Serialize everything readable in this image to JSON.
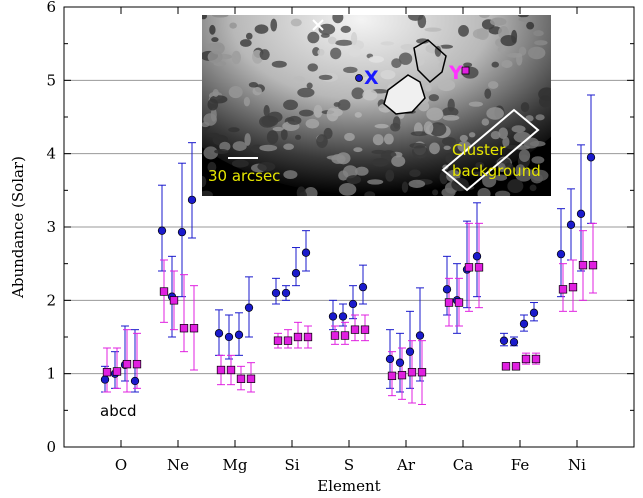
{
  "chart_data": {
    "type": "scatter",
    "xlabel": "Element",
    "ylabel": "Abundance (Solar)",
    "ylim": [
      0,
      6
    ],
    "yticks": [
      0,
      1,
      2,
      3,
      4,
      5,
      6
    ],
    "grid_y": true,
    "categories": [
      "O",
      "Ne",
      "Mg",
      "Si",
      "S",
      "Ar",
      "Ca",
      "Fe",
      "Ni"
    ],
    "subpoints": [
      "a",
      "b",
      "c",
      "d"
    ],
    "annotation": "abcd",
    "series": [
      {
        "marker": "circle",
        "color": "#1a1acc",
        "points": [
          {
            "category": "O",
            "sub": "a",
            "y": 0.92,
            "err": [
              0.75,
              1.1
            ]
          },
          {
            "category": "O",
            "sub": "b",
            "y": 1.0,
            "err": [
              0.8,
              1.3
            ]
          },
          {
            "category": "O",
            "sub": "c",
            "y": 1.12,
            "err": [
              0.9,
              1.65
            ]
          },
          {
            "category": "O",
            "sub": "d",
            "y": 0.9,
            "err": [
              0.75,
              1.6
            ]
          },
          {
            "category": "Ne",
            "sub": "a",
            "y": 2.95,
            "err": [
              2.4,
              3.57
            ]
          },
          {
            "category": "Ne",
            "sub": "b",
            "y": 2.05,
            "err": [
              1.5,
              2.6
            ]
          },
          {
            "category": "Ne",
            "sub": "c",
            "y": 2.93,
            "err": [
              2.05,
              3.87
            ]
          },
          {
            "category": "Ne",
            "sub": "d",
            "y": 3.37,
            "err": [
              2.85,
              4.15
            ]
          },
          {
            "category": "Mg",
            "sub": "a",
            "y": 1.55,
            "err": [
              1.25,
              1.87
            ]
          },
          {
            "category": "Mg",
            "sub": "b",
            "y": 1.5,
            "err": [
              1.2,
              1.8
            ]
          },
          {
            "category": "Mg",
            "sub": "c",
            "y": 1.53,
            "err": [
              1.25,
              1.83
            ]
          },
          {
            "category": "Mg",
            "sub": "d",
            "y": 1.9,
            "err": [
              1.5,
              2.32
            ]
          },
          {
            "category": "Si",
            "sub": "a",
            "y": 2.1,
            "err": [
              1.95,
              2.3
            ]
          },
          {
            "category": "Si",
            "sub": "b",
            "y": 2.1,
            "err": [
              2.0,
              2.2
            ]
          },
          {
            "category": "Si",
            "sub": "c",
            "y": 2.37,
            "err": [
              2.2,
              2.72
            ]
          },
          {
            "category": "Si",
            "sub": "d",
            "y": 2.65,
            "err": [
              2.4,
              2.95
            ]
          },
          {
            "category": "S",
            "sub": "a",
            "y": 1.78,
            "err": [
              1.6,
              2.0
            ]
          },
          {
            "category": "S",
            "sub": "b",
            "y": 1.78,
            "err": [
              1.65,
              1.95
            ]
          },
          {
            "category": "S",
            "sub": "c",
            "y": 1.95,
            "err": [
              1.75,
              2.2
            ]
          },
          {
            "category": "S",
            "sub": "d",
            "y": 2.18,
            "err": [
              1.95,
              2.48
            ]
          },
          {
            "category": "Ar",
            "sub": "a",
            "y": 1.2,
            "err": [
              0.8,
              1.6
            ]
          },
          {
            "category": "Ar",
            "sub": "b",
            "y": 1.15,
            "err": [
              0.75,
              1.55
            ]
          },
          {
            "category": "Ar",
            "sub": "c",
            "y": 1.3,
            "err": [
              0.8,
              1.85
            ]
          },
          {
            "category": "Ar",
            "sub": "d",
            "y": 1.52,
            "err": [
              0.9,
              2.17
            ]
          },
          {
            "category": "Ca",
            "sub": "a",
            "y": 2.15,
            "err": [
              1.8,
              2.6
            ]
          },
          {
            "category": "Ca",
            "sub": "b",
            "y": 2.0,
            "err": [
              1.55,
              2.5
            ]
          },
          {
            "category": "Ca",
            "sub": "c",
            "y": 2.42,
            "err": [
              1.9,
              3.08
            ]
          },
          {
            "category": "Ca",
            "sub": "d",
            "y": 2.6,
            "err": [
              2.05,
              3.33
            ]
          },
          {
            "category": "Fe",
            "sub": "a",
            "y": 1.45,
            "err": [
              1.38,
              1.55
            ]
          },
          {
            "category": "Fe",
            "sub": "b",
            "y": 1.43,
            "err": [
              1.38,
              1.5
            ]
          },
          {
            "category": "Fe",
            "sub": "c",
            "y": 1.68,
            "err": [
              1.58,
              1.8
            ]
          },
          {
            "category": "Fe",
            "sub": "d",
            "y": 1.83,
            "err": [
              1.72,
              1.97
            ]
          },
          {
            "category": "Ni",
            "sub": "a",
            "y": 2.63,
            "err": [
              2.05,
              3.25
            ]
          },
          {
            "category": "Ni",
            "sub": "b",
            "y": 3.03,
            "err": [
              2.55,
              3.52
            ]
          },
          {
            "category": "Ni",
            "sub": "c",
            "y": 3.18,
            "err": [
              2.4,
              4.12
            ]
          },
          {
            "category": "Ni",
            "sub": "d",
            "y": 3.95,
            "err": [
              3.05,
              4.8
            ]
          }
        ]
      },
      {
        "marker": "square",
        "color": "#e020e0",
        "points": [
          {
            "category": "O",
            "sub": "a",
            "y": 1.02,
            "err": [
              0.75,
              1.35
            ]
          },
          {
            "category": "O",
            "sub": "b",
            "y": 1.03,
            "err": [
              0.8,
              1.35
            ]
          },
          {
            "category": "O",
            "sub": "c",
            "y": 1.13,
            "err": [
              0.75,
              1.6
            ]
          },
          {
            "category": "O",
            "sub": "d",
            "y": 1.13,
            "err": [
              0.8,
              1.55
            ]
          },
          {
            "category": "Ne",
            "sub": "a",
            "y": 2.12,
            "err": [
              1.7,
              2.55
            ]
          },
          {
            "category": "Ne",
            "sub": "b",
            "y": 2.0,
            "err": [
              1.6,
              2.4
            ]
          },
          {
            "category": "Ne",
            "sub": "c",
            "y": 1.62,
            "err": [
              1.3,
              2.35
            ]
          },
          {
            "category": "Ne",
            "sub": "d",
            "y": 1.62,
            "err": [
              1.05,
              2.2
            ]
          },
          {
            "category": "Mg",
            "sub": "a",
            "y": 1.05,
            "err": [
              0.85,
              1.25
            ]
          },
          {
            "category": "Mg",
            "sub": "b",
            "y": 1.05,
            "err": [
              0.85,
              1.25
            ]
          },
          {
            "category": "Mg",
            "sub": "c",
            "y": 0.93,
            "err": [
              0.78,
              1.1
            ]
          },
          {
            "category": "Mg",
            "sub": "d",
            "y": 0.93,
            "err": [
              0.75,
              1.15
            ]
          },
          {
            "category": "Si",
            "sub": "a",
            "y": 1.45,
            "err": [
              1.35,
              1.55
            ]
          },
          {
            "category": "Si",
            "sub": "b",
            "y": 1.45,
            "err": [
              1.35,
              1.6
            ]
          },
          {
            "category": "Si",
            "sub": "c",
            "y": 1.5,
            "err": [
              1.35,
              1.7
            ]
          },
          {
            "category": "Si",
            "sub": "d",
            "y": 1.5,
            "err": [
              1.35,
              1.65
            ]
          },
          {
            "category": "S",
            "sub": "a",
            "y": 1.52,
            "err": [
              1.4,
              1.65
            ]
          },
          {
            "category": "S",
            "sub": "b",
            "y": 1.52,
            "err": [
              1.4,
              1.7
            ]
          },
          {
            "category": "S",
            "sub": "c",
            "y": 1.6,
            "err": [
              1.45,
              1.8
            ]
          },
          {
            "category": "S",
            "sub": "d",
            "y": 1.6,
            "err": [
              1.45,
              1.8
            ]
          },
          {
            "category": "Ar",
            "sub": "a",
            "y": 0.97,
            "err": [
              0.7,
              1.3
            ]
          },
          {
            "category": "Ar",
            "sub": "b",
            "y": 0.98,
            "err": [
              0.65,
              1.35
            ]
          },
          {
            "category": "Ar",
            "sub": "c",
            "y": 1.02,
            "err": [
              0.6,
              1.45
            ]
          },
          {
            "category": "Ar",
            "sub": "d",
            "y": 1.02,
            "err": [
              0.58,
              1.45
            ]
          },
          {
            "category": "Ca",
            "sub": "a",
            "y": 1.97,
            "err": [
              1.65,
              2.3
            ]
          },
          {
            "category": "Ca",
            "sub": "b",
            "y": 1.97,
            "err": [
              1.65,
              2.3
            ]
          },
          {
            "category": "Ca",
            "sub": "c",
            "y": 2.45,
            "err": [
              1.85,
              3.05
            ]
          },
          {
            "category": "Ca",
            "sub": "d",
            "y": 2.45,
            "err": [
              1.9,
              3.05
            ]
          },
          {
            "category": "Fe",
            "sub": "a",
            "y": 1.1,
            "err": [
              1.05,
              1.15
            ]
          },
          {
            "category": "Fe",
            "sub": "b",
            "y": 1.1,
            "err": [
              1.05,
              1.15
            ]
          },
          {
            "category": "Fe",
            "sub": "c",
            "y": 1.2,
            "err": [
              1.13,
              1.28
            ]
          },
          {
            "category": "Fe",
            "sub": "d",
            "y": 1.2,
            "err": [
              1.13,
              1.28
            ]
          },
          {
            "category": "Ni",
            "sub": "a",
            "y": 2.15,
            "err": [
              1.85,
              2.5
            ]
          },
          {
            "category": "Ni",
            "sub": "b",
            "y": 2.18,
            "err": [
              1.85,
              2.55
            ]
          },
          {
            "category": "Ni",
            "sub": "c",
            "y": 2.48,
            "err": [
              2.0,
              2.95
            ]
          },
          {
            "category": "Ni",
            "sub": "d",
            "y": 2.48,
            "err": [
              2.1,
              3.05
            ]
          }
        ]
      }
    ],
    "inset": {
      "description_labels": {
        "x_label": "X",
        "y_label": "Y",
        "scale_bar": "30 arcsec",
        "region_line1": "Cluster",
        "region_line2": "background"
      },
      "x_label_color": "#1a1aff",
      "y_label_color": "#ff33ff",
      "text_color": "#e6e600"
    }
  }
}
